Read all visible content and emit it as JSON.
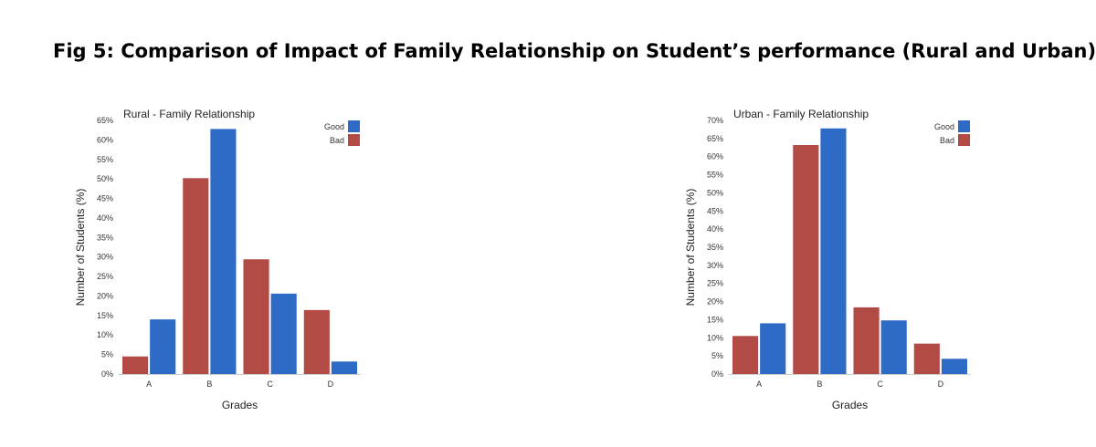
{
  "figure": {
    "title": "Fig 5: Comparison of Impact of Family Relationship on Student’s performance (Rural and Urban)"
  },
  "colors": {
    "good": "#2E6BC7",
    "bad": "#B24A45",
    "axis": "#cccccc",
    "text": "#333333"
  },
  "chart_data": [
    {
      "id": "rural",
      "type": "bar",
      "title": "Rural - Family Relationship",
      "xlabel": "Grades",
      "ylabel": "Number of Students (%)",
      "categories": [
        "A",
        "B",
        "C",
        "D"
      ],
      "ylim": [
        0,
        65
      ],
      "ytick_step": 5,
      "ytick_suffix": "%",
      "grid": false,
      "legend": "top-right",
      "series": [
        {
          "name": "Bad",
          "color": "#B24A45",
          "values": [
            4.5,
            50.2,
            29.4,
            16.4
          ]
        },
        {
          "name": "Good",
          "color": "#2E6BC7",
          "values": [
            14,
            62.8,
            20.6,
            3.2
          ]
        }
      ],
      "legend_order": [
        "Good",
        "Bad"
      ]
    },
    {
      "id": "urban",
      "type": "bar",
      "title": "Urban - Family Relationship",
      "xlabel": "Grades",
      "ylabel": "Number of Students (%)",
      "categories": [
        "A",
        "B",
        "C",
        "D"
      ],
      "ylim": [
        0,
        70
      ],
      "ytick_step": 5,
      "ytick_suffix": "%",
      "grid": false,
      "legend": "top-right",
      "series": [
        {
          "name": "Bad",
          "color": "#B24A45",
          "values": [
            10.5,
            63.2,
            18.4,
            8.4
          ]
        },
        {
          "name": "Good",
          "color": "#2E6BC7",
          "values": [
            14,
            67.8,
            14.8,
            4.2
          ]
        }
      ],
      "legend_order": [
        "Good",
        "Bad"
      ]
    }
  ]
}
